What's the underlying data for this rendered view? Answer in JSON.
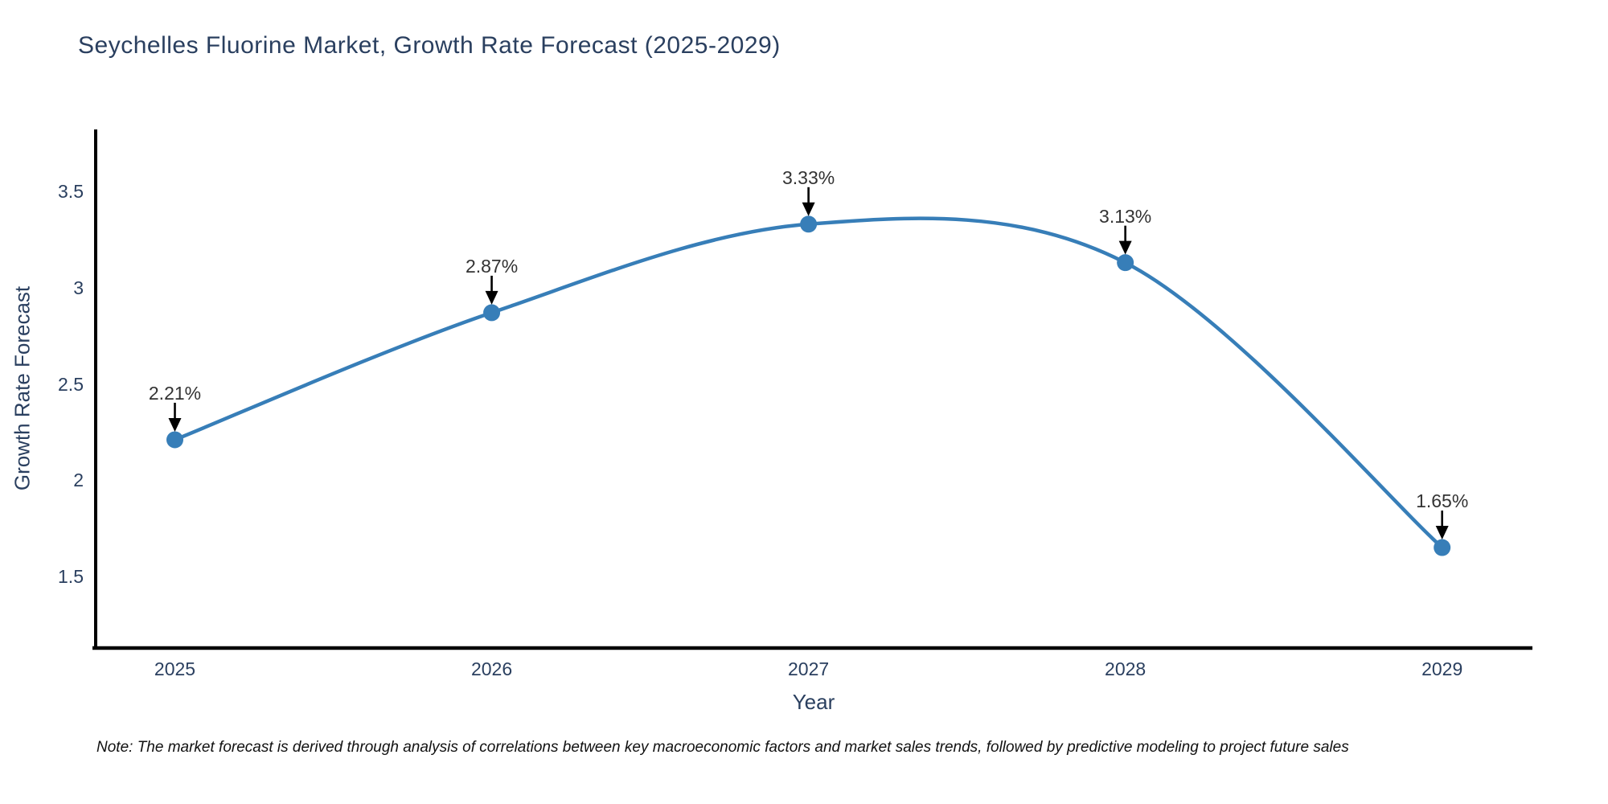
{
  "title": "Seychelles Fluorine Market, Growth Rate Forecast (2025-2029)",
  "note": "Note: The market forecast is derived through analysis of correlations between key macroeconomic factors and market sales trends, followed by predictive modeling to project future sales",
  "chart_data": {
    "type": "line",
    "line_shape": "spline",
    "title": "Seychelles Fluorine Market, Growth Rate Forecast (2025-2029)",
    "xlabel": "Year",
    "ylabel": "Growth Rate Forecast",
    "x": [
      2025,
      2026,
      2027,
      2028,
      2029
    ],
    "values": [
      2.21,
      2.87,
      3.33,
      3.13,
      1.65
    ],
    "point_labels": [
      "2.21%",
      "2.87%",
      "3.33%",
      "3.13%",
      "1.65%"
    ],
    "xticks": [
      "2025",
      "2026",
      "2027",
      "2028",
      "2029"
    ],
    "xtick_values": [
      2025,
      2026,
      2027,
      2028,
      2029
    ],
    "yticks": [
      "1.5",
      "2",
      "2.5",
      "3",
      "3.5"
    ],
    "ytick_values": [
      1.5,
      2,
      2.5,
      3,
      3.5
    ],
    "xlim": [
      2024.75,
      2029.285
    ],
    "ylim": [
      1.128,
      3.822
    ],
    "grid": false,
    "legend": "none",
    "annotations_have_arrows": true,
    "colors": {
      "line": "#377eb8",
      "marker": "#377eb8",
      "axis": "#000000",
      "title_text": "#2a3f5f",
      "tick_text": "#2a3f5f",
      "annotation_text": "#333333",
      "annotation_arrow": "#000000",
      "note_text": "#111111",
      "background": "#ffffff"
    }
  }
}
